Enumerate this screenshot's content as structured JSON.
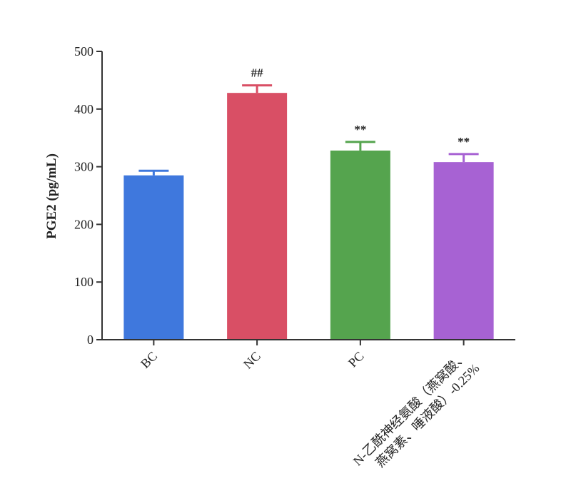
{
  "chart_data": {
    "type": "bar",
    "title": "",
    "xlabel": "",
    "ylabel": "PGE2 (pg/mL)",
    "ylim": [
      0,
      500
    ],
    "yticks": [
      0,
      100,
      200,
      300,
      400,
      500
    ],
    "grid": false,
    "categories": [
      "BC",
      "NC",
      "PC",
      "N-乙酰神经氨酸（燕窝酸、燕窝素、唾液酸）-0.25%"
    ],
    "category_label_lines": [
      [
        "BC"
      ],
      [
        "NC"
      ],
      [
        "PC"
      ],
      [
        "N-乙酰神经氨酸（燕窝酸、",
        "燕窝素、唾液酸）-0.25%"
      ]
    ],
    "values": [
      285,
      428,
      328,
      308
    ],
    "errors": [
      8,
      13,
      15,
      14
    ],
    "significance": [
      "",
      "##",
      "**",
      "**"
    ],
    "colors": [
      "#3f78dd",
      "#d94f65",
      "#55a44e",
      "#a762d3"
    ]
  }
}
